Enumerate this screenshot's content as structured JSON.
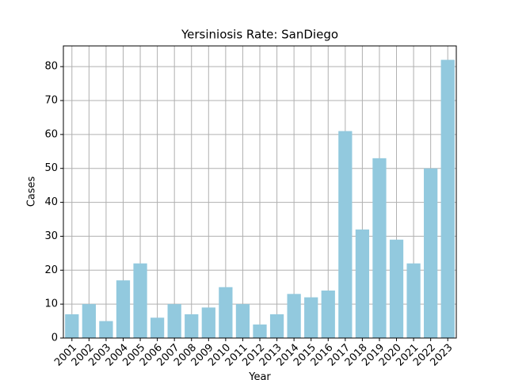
{
  "chart_data": {
    "type": "bar",
    "title": "Yersiniosis Rate: SanDiego",
    "x_label": "Year",
    "y_label": "Cases",
    "categories": [
      "2001",
      "2002",
      "2003",
      "2004",
      "2005",
      "2006",
      "2007",
      "2008",
      "2009",
      "2010",
      "2011",
      "2012",
      "2013",
      "2014",
      "2015",
      "2016",
      "2017",
      "2018",
      "2019",
      "2020",
      "2021",
      "2022",
      "2023"
    ],
    "values": [
      7,
      10,
      5,
      17,
      22,
      6,
      10,
      7,
      9,
      15,
      10,
      4,
      7,
      13,
      12,
      14,
      61,
      32,
      53,
      29,
      22,
      50,
      82
    ],
    "color": "#92c9de",
    "ylim": [
      0,
      86.1
    ],
    "yticks": [
      0,
      10,
      20,
      30,
      40,
      50,
      60,
      70,
      80
    ],
    "grid": true
  }
}
